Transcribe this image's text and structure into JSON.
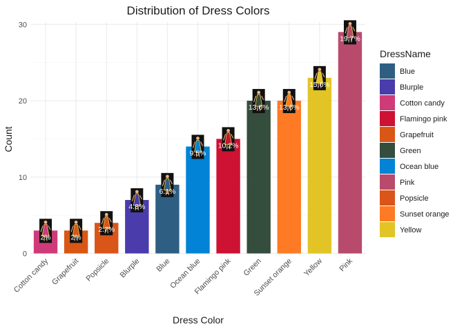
{
  "chart_data": {
    "type": "bar",
    "title": "Distribution of Dress Colors",
    "xlabel": "Dress Color",
    "ylabel": "Count",
    "ylim": [
      0,
      30
    ],
    "yticks": [
      0,
      10,
      20,
      30
    ],
    "grid": true,
    "legend": {
      "title": "DressName",
      "position": "right"
    },
    "categories": [
      "Cotton candy",
      "Grapefruit",
      "Popsicle",
      "Blurple",
      "Blue",
      "Ocean blue",
      "Flamingo pink",
      "Green",
      "Sunset orange",
      "Yellow",
      "Pink"
    ],
    "values": [
      3,
      3,
      4,
      7,
      9,
      14,
      15,
      20,
      20,
      23,
      29
    ],
    "percent_labels": [
      "2%",
      "2%",
      "2.7%",
      "4.8%",
      "6.1%",
      "9.5%",
      "10.2%",
      "13.6%",
      "13.6%",
      "15.6%",
      "19.7%"
    ],
    "colors": {
      "Blue": "#2e5f83",
      "Blurple": "#4a3cab",
      "Cotton candy": "#cf3b78",
      "Flamingo pink": "#cd1233",
      "Grapefruit": "#da5614",
      "Green": "#354d3c",
      "Ocean blue": "#0283d5",
      "Pink": "#b84b6b",
      "Popsicle": "#d95519",
      "Sunset orange": "#fe7a25",
      "Yellow": "#e3c426"
    },
    "legend_entries": [
      "Blue",
      "Blurple",
      "Cotton candy",
      "Flamingo pink",
      "Grapefruit",
      "Green",
      "Ocean blue",
      "Pink",
      "Popsicle",
      "Sunset orange",
      "Yellow"
    ],
    "marker": "dress-figure-icon"
  }
}
